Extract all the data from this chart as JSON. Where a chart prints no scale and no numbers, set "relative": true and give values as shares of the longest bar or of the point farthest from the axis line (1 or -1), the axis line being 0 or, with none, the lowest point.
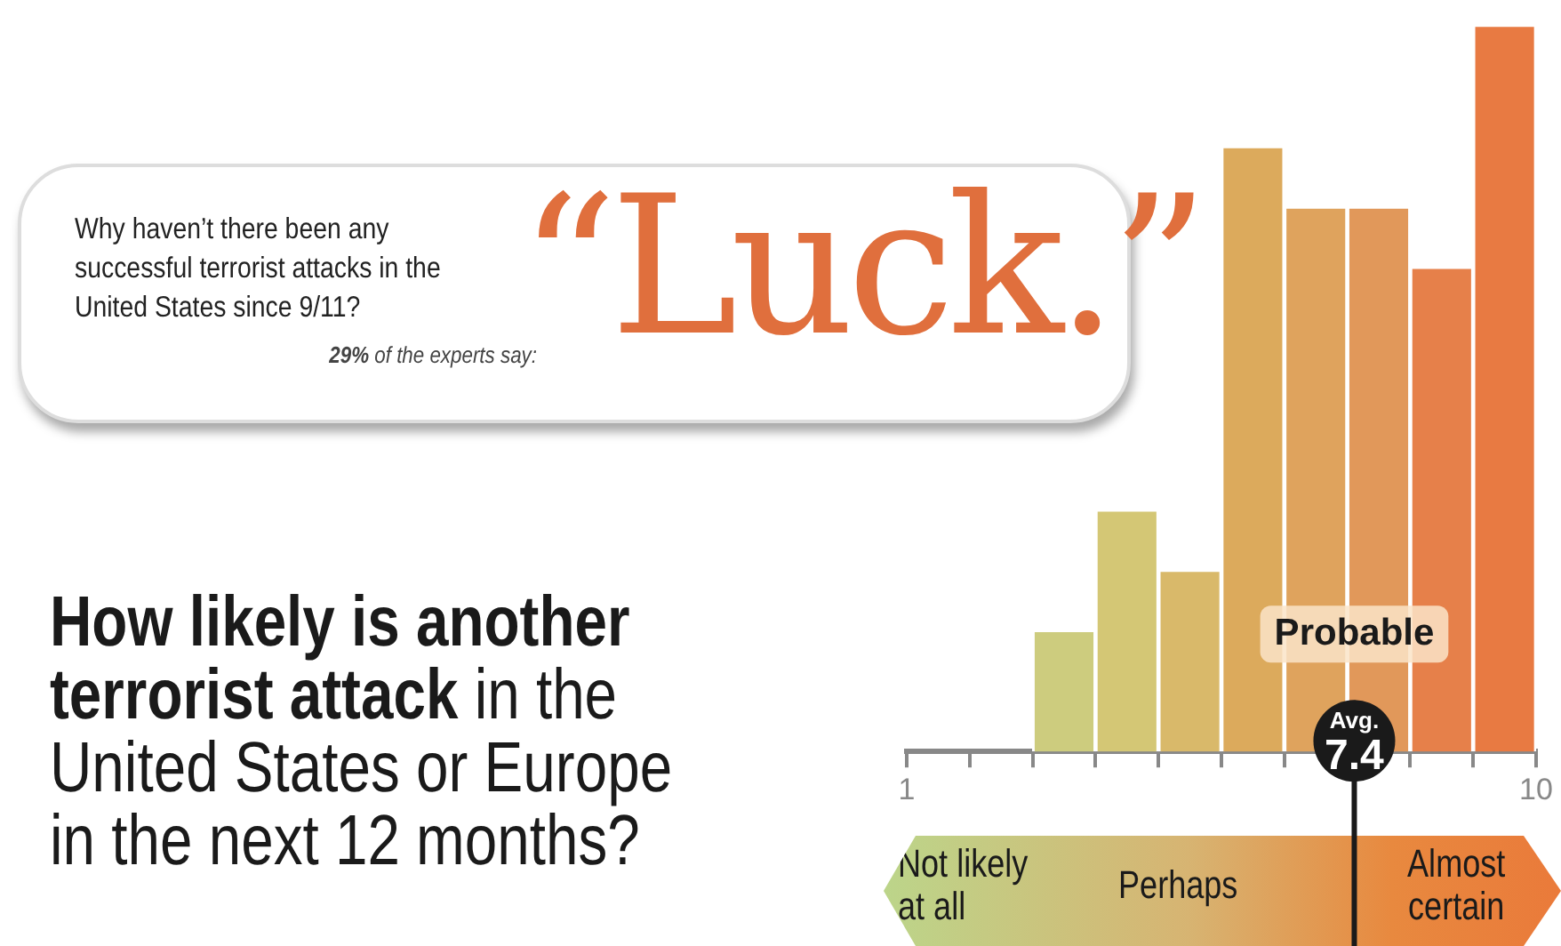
{
  "chart_data": {
    "type": "bar",
    "title": "How likely is another terrorist attack",
    "subtitle": "in the United States or Europe in the next 12 months?",
    "x": [
      1.45,
      2.35,
      3.25,
      4.15,
      5.05,
      5.95,
      6.85,
      7.75,
      8.65,
      9.55
    ],
    "values": [
      0,
      0,
      0.167,
      0.333,
      0.25,
      0.833,
      0.75,
      0.75,
      0.667,
      1
    ],
    "colors": [
      "#cdcc7e",
      "#cdcc7e",
      "#cdcc7e",
      "#d4c775",
      "#d9b96a",
      "#dcaa5c",
      "#dfa35d",
      "#e1985a",
      "#e6804a",
      "#e87a42"
    ],
    "relative": true,
    "xlim": [
      1,
      10
    ],
    "xticks": [
      1,
      {
        "value": 1.9,
        "label": null
      },
      {
        "value": 2.8,
        "label": null
      },
      {
        "value": 3.7,
        "label": null
      },
      {
        "value": 4.6,
        "label": null
      },
      {
        "value": 5.5,
        "label": null
      },
      {
        "value": 6.4,
        "label": null
      },
      {
        "value": 7.3,
        "label": null
      },
      {
        "value": 8.2,
        "label": null
      },
      {
        "value": 9.1,
        "label": null
      },
      10
    ],
    "ref_lines": [
      {
        "axis": "x",
        "value": 7.4,
        "label": "Avg. 7.4",
        "color": "#1a1a1a"
      }
    ],
    "annotations": [
      "Why haven’t there been any successful terrorist attacks in the United States since 9/11?",
      "29% of the experts say:",
      "“Luck.”",
      "Not likely at all",
      "Perhaps",
      "Almost certain",
      "Probable"
    ]
  }
}
